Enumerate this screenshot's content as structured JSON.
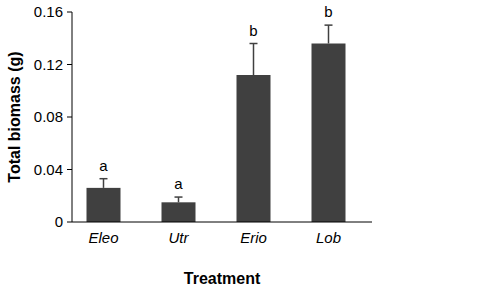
{
  "chart_data": {
    "type": "bar",
    "x_label": "Treatment",
    "y_label": "Total biomass (g)",
    "categories": [
      "Eleo",
      "Utr",
      "Erio",
      "Lob"
    ],
    "values": [
      0.026,
      0.015,
      0.112,
      0.136
    ],
    "errors": [
      0.007,
      0.004,
      0.024,
      0.014
    ],
    "significance": [
      "a",
      "a",
      "b",
      "b"
    ],
    "color": "#404040",
    "ylim": [
      0,
      0.16
    ],
    "yticks": [
      0,
      0.04,
      0.08,
      0.12,
      0.16
    ],
    "grid": false
  }
}
